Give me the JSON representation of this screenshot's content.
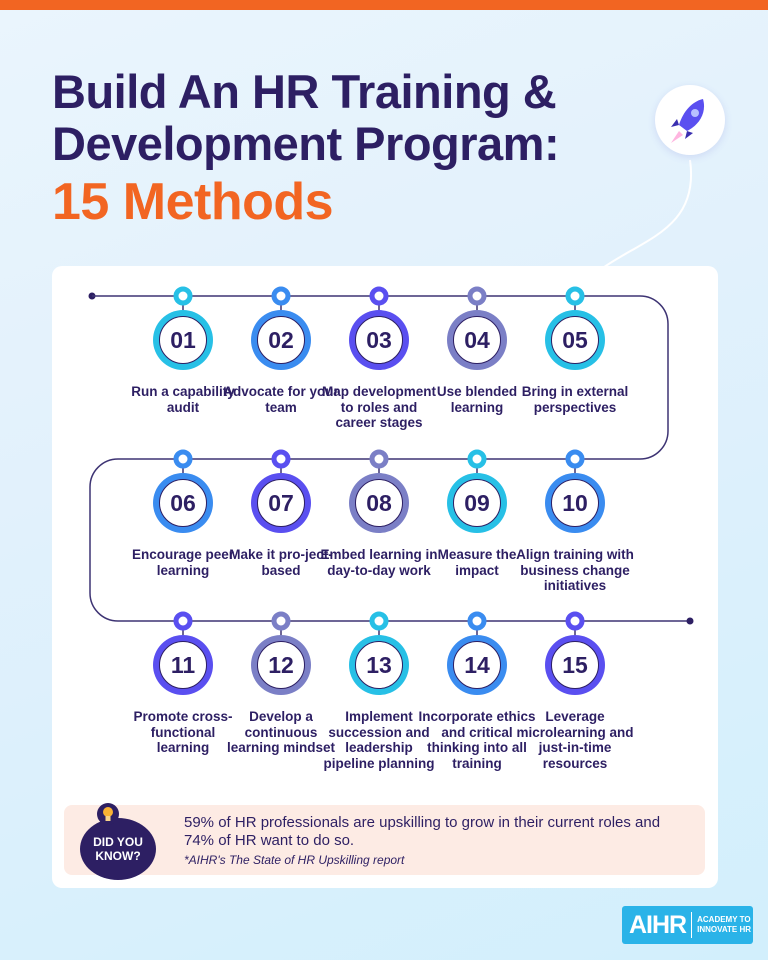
{
  "header": {
    "title_line1": "Build An HR Training &",
    "title_line2": "Development Program:",
    "title_highlight": "15 Methods"
  },
  "colors": {
    "accent": "#f26522",
    "navy": "#2d1f63",
    "cyan": "#27c0e6",
    "blue": "#3a8cf0",
    "purple": "#5a4ff0",
    "grey": "#7b7fc6"
  },
  "steps": [
    {
      "num": "01",
      "label": "Run a capability audit",
      "color": "cyan"
    },
    {
      "num": "02",
      "label": "Advocate for your team",
      "color": "blue"
    },
    {
      "num": "03",
      "label": "Map development to roles and career stages",
      "color": "purple"
    },
    {
      "num": "04",
      "label": "Use blended learning",
      "color": "grey"
    },
    {
      "num": "05",
      "label": "Bring in external perspectives",
      "color": "cyan"
    },
    {
      "num": "06",
      "label": "Encourage peer learning",
      "color": "blue"
    },
    {
      "num": "07",
      "label": "Make it pro-ject-based",
      "color": "purple"
    },
    {
      "num": "08",
      "label": "Embed learning in day-to-day work",
      "color": "grey"
    },
    {
      "num": "09",
      "label": "Measure the impact",
      "color": "cyan"
    },
    {
      "num": "10",
      "label": "Align training with business change initiatives",
      "color": "blue"
    },
    {
      "num": "11",
      "label": "Promote cross-functional learning",
      "color": "purple"
    },
    {
      "num": "12",
      "label": "Develop a continuous learning mindset",
      "color": "grey"
    },
    {
      "num": "13",
      "label": "Implement succession and leadership pipeline planning",
      "color": "cyan"
    },
    {
      "num": "14",
      "label": "Incorporate ethics and critical thinking into all training",
      "color": "blue"
    },
    {
      "num": "15",
      "label": "Leverage microlearning and just-in-time resources",
      "color": "purple"
    }
  ],
  "fact": {
    "badge_line1": "DID YOU",
    "badge_line2": "KNOW?",
    "text": "59% of HR professionals are upskilling to grow in their current roles and 74% of HR want to do so.",
    "source": "*AIHR's The State of HR Upskilling report",
    "icon": "lightbulb-icon"
  },
  "logo": {
    "mark": "AIHR",
    "tag_line1": "ACADEMY TO",
    "tag_line2": "INNOVATE HR"
  }
}
